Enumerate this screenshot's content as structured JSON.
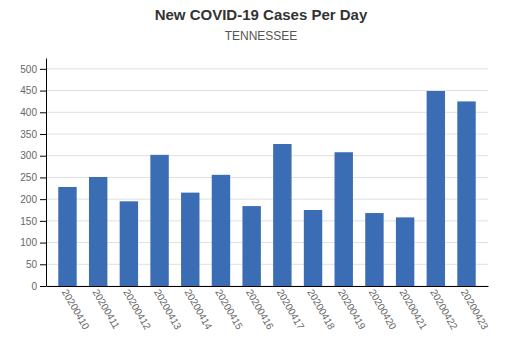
{
  "chart_data": {
    "type": "bar",
    "title": "New COVID-19 Cases Per Day",
    "subtitle": "TENNESSEE",
    "categories": [
      "20200410",
      "20200411",
      "20200412",
      "20200413",
      "20200414",
      "20200415",
      "20200416",
      "20200417",
      "20200418",
      "20200419",
      "20200420",
      "20200421",
      "20200422",
      "20200423"
    ],
    "values": [
      228,
      251,
      195,
      302,
      215,
      256,
      184,
      327,
      175,
      308,
      168,
      158,
      449,
      425
    ],
    "color": "#3b6db5",
    "ylim": [
      0,
      525
    ],
    "yticks": [
      0,
      50,
      100,
      150,
      200,
      250,
      300,
      350,
      400,
      450,
      500
    ],
    "grid": true
  }
}
